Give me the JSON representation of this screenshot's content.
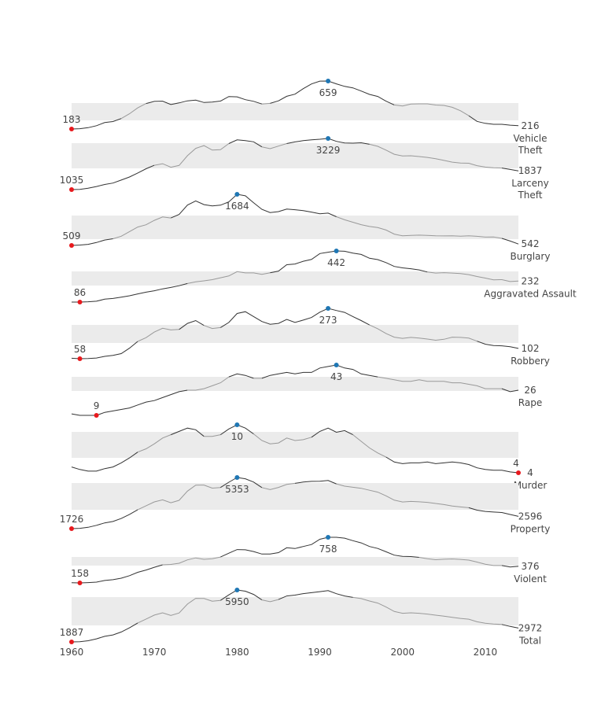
{
  "chart_data": {
    "type": "line",
    "title": "",
    "xlabel": "",
    "ylabel": "",
    "xlim": [
      1960,
      2014
    ],
    "x_ticks": [
      "1960",
      "1970",
      "1980",
      "1990",
      "2000",
      "2010"
    ],
    "years": [
      1960,
      1961,
      1962,
      1963,
      1964,
      1965,
      1966,
      1967,
      1968,
      1969,
      1970,
      1971,
      1972,
      1973,
      1974,
      1975,
      1976,
      1977,
      1978,
      1979,
      1980,
      1981,
      1982,
      1983,
      1984,
      1985,
      1986,
      1987,
      1988,
      1989,
      1990,
      1991,
      1992,
      1993,
      1994,
      1995,
      1996,
      1997,
      1998,
      1999,
      2000,
      2001,
      2002,
      2003,
      2004,
      2005,
      2006,
      2007,
      2008,
      2009,
      2010,
      2011,
      2012,
      2013,
      2014
    ],
    "grid": false,
    "legend": "none",
    "colors": {
      "band": "#ebebeb",
      "dark_line": "#333333",
      "light_line": "#999999",
      "min_marker": "#e8191d",
      "max_marker": "#1f77b4"
    },
    "series": [
      {
        "name": "Vehicle Theft",
        "name_lines": [
          "Vehicle",
          "Theft"
        ],
        "values": [
          183,
          186,
          196,
          216,
          247,
          257,
          287,
          334,
          393,
          436,
          457,
          459,
          426,
          442,
          462,
          469,
          446,
          450,
          460,
          505,
          502,
          474,
          458,
          431,
          437,
          462,
          508,
          529,
          583,
          630,
          658,
          659,
          631,
          606,
          591,
          560,
          526,
          506,
          459,
          422,
          412,
          430,
          433,
          433,
          421,
          417,
          398,
          364,
          315,
          259,
          239,
          230,
          230,
          221,
          216
        ],
        "min_label": "183",
        "max_label": "659",
        "end_label": "216"
      },
      {
        "name": "Larceny Theft",
        "name_lines": [
          "Larceny",
          "Theft"
        ],
        "values": [
          1035,
          1046,
          1094,
          1168,
          1253,
          1314,
          1442,
          1575,
          1747,
          1930,
          2079,
          2146,
          1994,
          2071,
          2490,
          2805,
          2921,
          2730,
          2747,
          3009,
          3167,
          3139,
          3084,
          2869,
          2791,
          2901,
          3010,
          3081,
          3134,
          3171,
          3195,
          3229,
          3103,
          3033,
          3026,
          3043,
          2980,
          2891,
          2728,
          2550,
          2477,
          2485,
          2451,
          2416,
          2363,
          2287,
          2214,
          2177,
          2167,
          2061,
          1999,
          1974,
          1959,
          1899,
          1837
        ],
        "min_label": "1035",
        "max_label": "3229",
        "end_label": "1837"
      },
      {
        "name": "Burglary",
        "name_lines": [
          "Burglary"
        ],
        "values": [
          509,
          518,
          535,
          576,
          634,
          662,
          721,
          827,
          932,
          984,
          1085,
          1163,
          1140,
          1222,
          1437,
          1532,
          1448,
          1419,
          1434,
          1511,
          1684,
          1649,
          1488,
          1338,
          1264,
          1287,
          1345,
          1330,
          1309,
          1276,
          1236,
          1252,
          1168,
          1099,
          1042,
          987,
          945,
          919,
          863,
          770,
          729,
          741,
          746,
          741,
          730,
          727,
          729,
          723,
          731,
          718,
          701,
          702,
          672,
          610,
          542
        ],
        "min_label": "509",
        "max_label": "1684",
        "end_label": "542"
      },
      {
        "name": "Aggravated Assault",
        "name_lines": [
          "Aggravated Assault"
        ],
        "values": [
          86,
          86,
          88,
          92,
          106,
          111,
          120,
          130,
          143,
          155,
          165,
          178,
          188,
          200,
          215,
          227,
          234,
          242,
          255,
          268,
          298,
          289,
          289,
          279,
          290,
          302,
          346,
          351,
          370,
          383,
          424,
          433,
          442,
          440,
          427,
          418,
          391,
          382,
          361,
          334,
          324,
          318,
          310,
          295,
          288,
          291,
          288,
          285,
          277,
          264,
          253,
          241,
          242,
          229,
          232
        ],
        "min_label": "86",
        "max_label": "442",
        "end_label": "232"
      },
      {
        "name": "Robbery",
        "name_lines": [
          "Robbery"
        ],
        "values": [
          60,
          58,
          59,
          61,
          68,
          72,
          80,
          103,
          132,
          148,
          172,
          188,
          181,
          183,
          209,
          221,
          200,
          187,
          191,
          213,
          251,
          259,
          238,
          217,
          205,
          209,
          226,
          213,
          223,
          234,
          257,
          273,
          264,
          256,
          238,
          221,
          202,
          186,
          166,
          150,
          145,
          149,
          146,
          142,
          137,
          141,
          150,
          149,
          146,
          133,
          120,
          114,
          113,
          109,
          102
        ],
        "min_label": "58",
        "max_label": "273",
        "end_label": "102"
      },
      {
        "name": "Rape",
        "name_lines": [
          "Rape"
        ],
        "values": [
          10,
          9,
          9,
          9,
          11,
          12,
          13,
          14,
          16,
          18,
          19,
          21,
          23,
          25,
          26,
          26,
          27,
          29,
          31,
          35,
          37,
          36,
          34,
          34,
          36,
          37,
          38,
          37,
          38,
          38,
          41,
          42,
          43,
          41,
          40,
          37,
          36,
          35,
          34,
          33,
          32,
          32,
          33,
          32,
          32,
          32,
          31,
          31,
          30,
          29,
          27,
          27,
          27,
          25,
          26
        ],
        "min_label": "9",
        "max_label": "43",
        "end_label": "26"
      },
      {
        "name": "Murder",
        "name_lines": [
          "Murder"
        ],
        "values": [
          5.1,
          4.8,
          4.6,
          4.6,
          4.9,
          5.1,
          5.6,
          6.2,
          6.9,
          7.3,
          7.9,
          8.6,
          9.0,
          9.4,
          9.8,
          9.6,
          8.8,
          8.8,
          9.0,
          9.7,
          10.2,
          9.8,
          9.1,
          8.3,
          7.9,
          8.0,
          8.6,
          8.3,
          8.4,
          8.7,
          9.4,
          9.8,
          9.3,
          9.5,
          9.0,
          8.2,
          7.4,
          6.8,
          6.3,
          5.7,
          5.5,
          5.6,
          5.6,
          5.7,
          5.5,
          5.6,
          5.7,
          5.6,
          5.4,
          5.0,
          4.8,
          4.7,
          4.7,
          4.5,
          4.4
        ],
        "min_label": "4",
        "max_label": "10",
        "end_label": "4"
      },
      {
        "name": "Property",
        "name_lines": [
          "Property"
        ],
        "values": [
          1726,
          1747,
          1819,
          1958,
          2132,
          2235,
          2445,
          2737,
          3072,
          3351,
          3622,
          3768,
          3560,
          3737,
          4389,
          4811,
          4820,
          4600,
          4642,
          5016,
          5353,
          5264,
          5032,
          4638,
          4492,
          4651,
          4863,
          4940,
          5027,
          5078,
          5089,
          5140,
          4903,
          4738,
          4660,
          4591,
          4451,
          4316,
          4052,
          3744,
          3618,
          3658,
          3631,
          3591,
          3514,
          3432,
          3335,
          3264,
          3212,
          3036,
          2946,
          2905,
          2868,
          2733,
          2596
        ],
        "min_label": "1726",
        "max_label": "5353",
        "end_label": "2596"
      },
      {
        "name": "Violent",
        "name_lines": [
          "Violent"
        ],
        "values": [
          161,
          158,
          162,
          168,
          190,
          200,
          220,
          253,
          298,
          328,
          364,
          396,
          401,
          417,
          461,
          487,
          468,
          476,
          498,
          549,
          597,
          594,
          571,
          538,
          539,
          556,
          620,
          610,
          637,
          663,
          732,
          758,
          758,
          747,
          714,
          685,
          637,
          611,
          568,
          523,
          507,
          505,
          494,
          476,
          463,
          469,
          474,
          467,
          458,
          432,
          404,
          387,
          387,
          368,
          376
        ],
        "min_label": "158",
        "max_label": "758",
        "end_label": "376"
      },
      {
        "name": "Total",
        "name_lines": [
          "Total"
        ],
        "values": [
          1887,
          1906,
          1981,
          2126,
          2322,
          2435,
          2665,
          2990,
          3370,
          3680,
          3986,
          4165,
          3961,
          4154,
          4850,
          5299,
          5288,
          5077,
          5140,
          5566,
          5950,
          5858,
          5604,
          5175,
          5031,
          5207,
          5480,
          5550,
          5664,
          5741,
          5820,
          5898,
          5661,
          5484,
          5374,
          5276,
          5087,
          4927,
          4620,
          4267,
          4125,
          4163,
          4125,
          4067,
          3977,
          3901,
          3808,
          3730,
          3669,
          3466,
          3350,
          3292,
          3255,
          3099,
          2972
        ],
        "min_label": "1887",
        "max_label": "5950",
        "end_label": "2972"
      }
    ]
  }
}
